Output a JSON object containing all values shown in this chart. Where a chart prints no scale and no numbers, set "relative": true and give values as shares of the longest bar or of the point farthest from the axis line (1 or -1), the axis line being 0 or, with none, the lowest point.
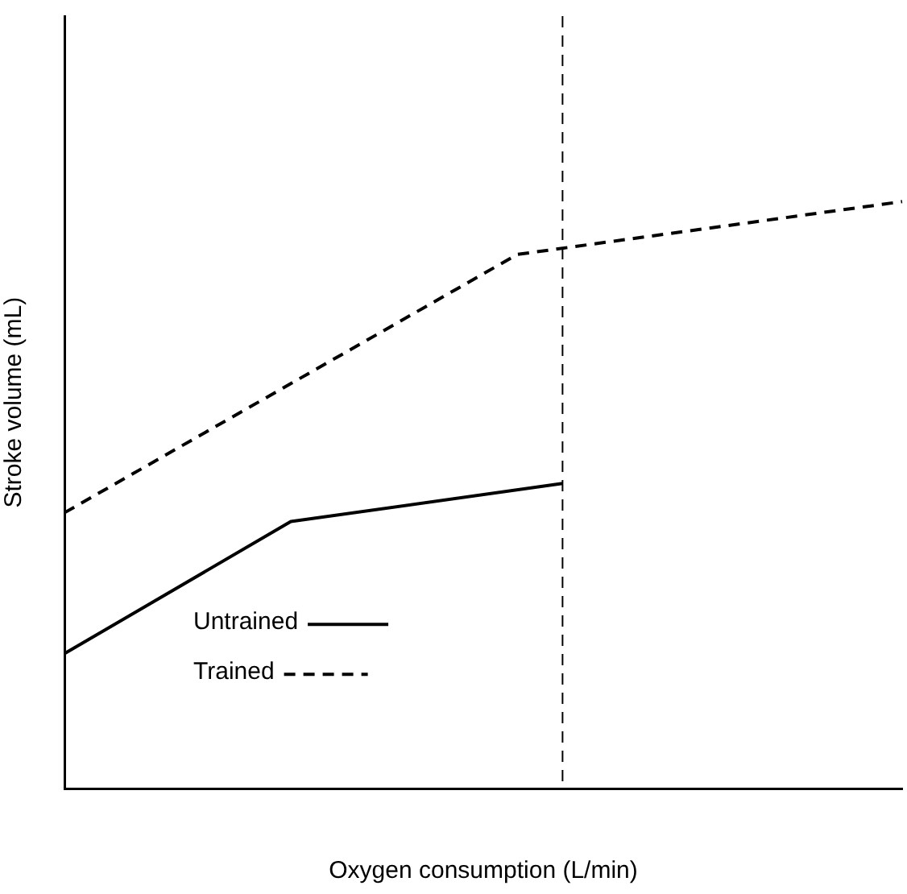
{
  "chart_data": {
    "type": "line",
    "relative": true,
    "xlabel": "Oxygen consumption (L/min)",
    "ylabel": "Stroke volume (mL)",
    "categories": [
      null,
      null,
      null,
      null,
      null,
      null,
      null,
      null,
      null,
      null,
      null,
      null,
      null,
      null,
      null,
      null,
      null,
      null,
      null,
      null,
      null,
      null,
      null,
      null,
      null,
      null,
      null,
      null,
      null,
      null,
      null,
      null,
      null,
      null,
      null,
      null,
      null,
      null
    ],
    "series": [
      {
        "name": "Untrained",
        "color": "#000000",
        "line_style": "solid",
        "values": [
          0.23,
          null,
          null,
          null,
          null,
          null,
          null,
          null,
          null,
          null,
          0.455,
          null,
          null,
          null,
          null,
          null,
          null,
          null,
          null,
          null,
          null,
          null,
          0.52,
          null,
          null,
          null,
          null,
          null,
          null,
          null,
          null,
          null,
          null,
          null,
          null,
          null,
          null,
          null
        ]
      },
      {
        "name": "Trained",
        "color": "#000000",
        "line_style": "dashed",
        "values": [
          0.47,
          null,
          null,
          null,
          null,
          null,
          null,
          null,
          null,
          null,
          null,
          null,
          null,
          null,
          null,
          null,
          null,
          null,
          null,
          null,
          0.91,
          null,
          null,
          null,
          null,
          null,
          null,
          null,
          null,
          null,
          null,
          null,
          null,
          null,
          null,
          null,
          null,
          1.0
        ]
      }
    ],
    "legend": "bottom left",
    "grid": false,
    "marker": "none"
  }
}
